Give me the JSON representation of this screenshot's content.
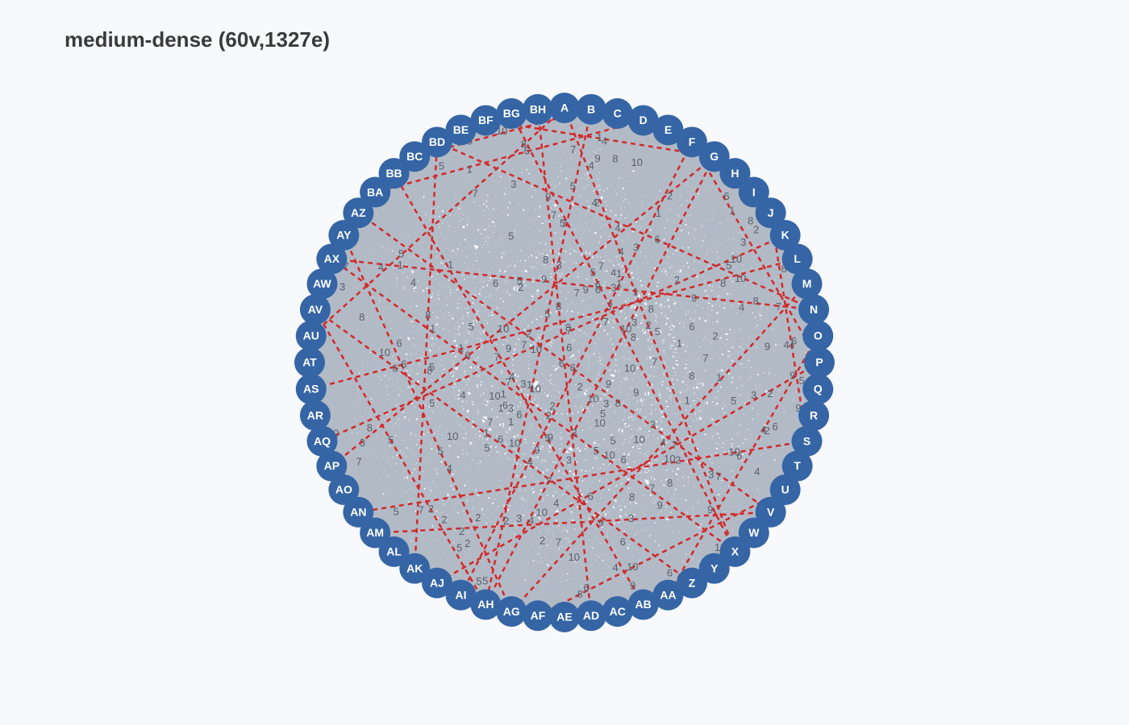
{
  "title": "medium-dense (60v,1327e)",
  "colors": {
    "background": "#f8f9fc",
    "edge": "#b2bac6",
    "highlight_edge": "#d42828",
    "node_fill": "#3565a5",
    "node_label": "#ffffff",
    "weight_label": "#5a5f68"
  },
  "graph": {
    "vertex_count": 60,
    "edge_count": 1327,
    "layout": "circular",
    "nodes": [
      "A",
      "B",
      "C",
      "D",
      "E",
      "F",
      "G",
      "H",
      "I",
      "J",
      "K",
      "L",
      "M",
      "N",
      "O",
      "P",
      "Q",
      "R",
      "S",
      "T",
      "U",
      "V",
      "W",
      "X",
      "Y",
      "Z",
      "AA",
      "AB",
      "AC",
      "AD",
      "AE",
      "AF",
      "AG",
      "AH",
      "AI",
      "AJ",
      "AK",
      "AL",
      "AM",
      "AN",
      "AO",
      "AP",
      "AQ",
      "AR",
      "AS",
      "AT",
      "AU",
      "AV",
      "AW",
      "AX",
      "AY",
      "AZ",
      "BA",
      "BB",
      "BC",
      "BD",
      "BE",
      "BF",
      "BG",
      "BH"
    ],
    "edge_weight_range": [
      1,
      10
    ]
  }
}
